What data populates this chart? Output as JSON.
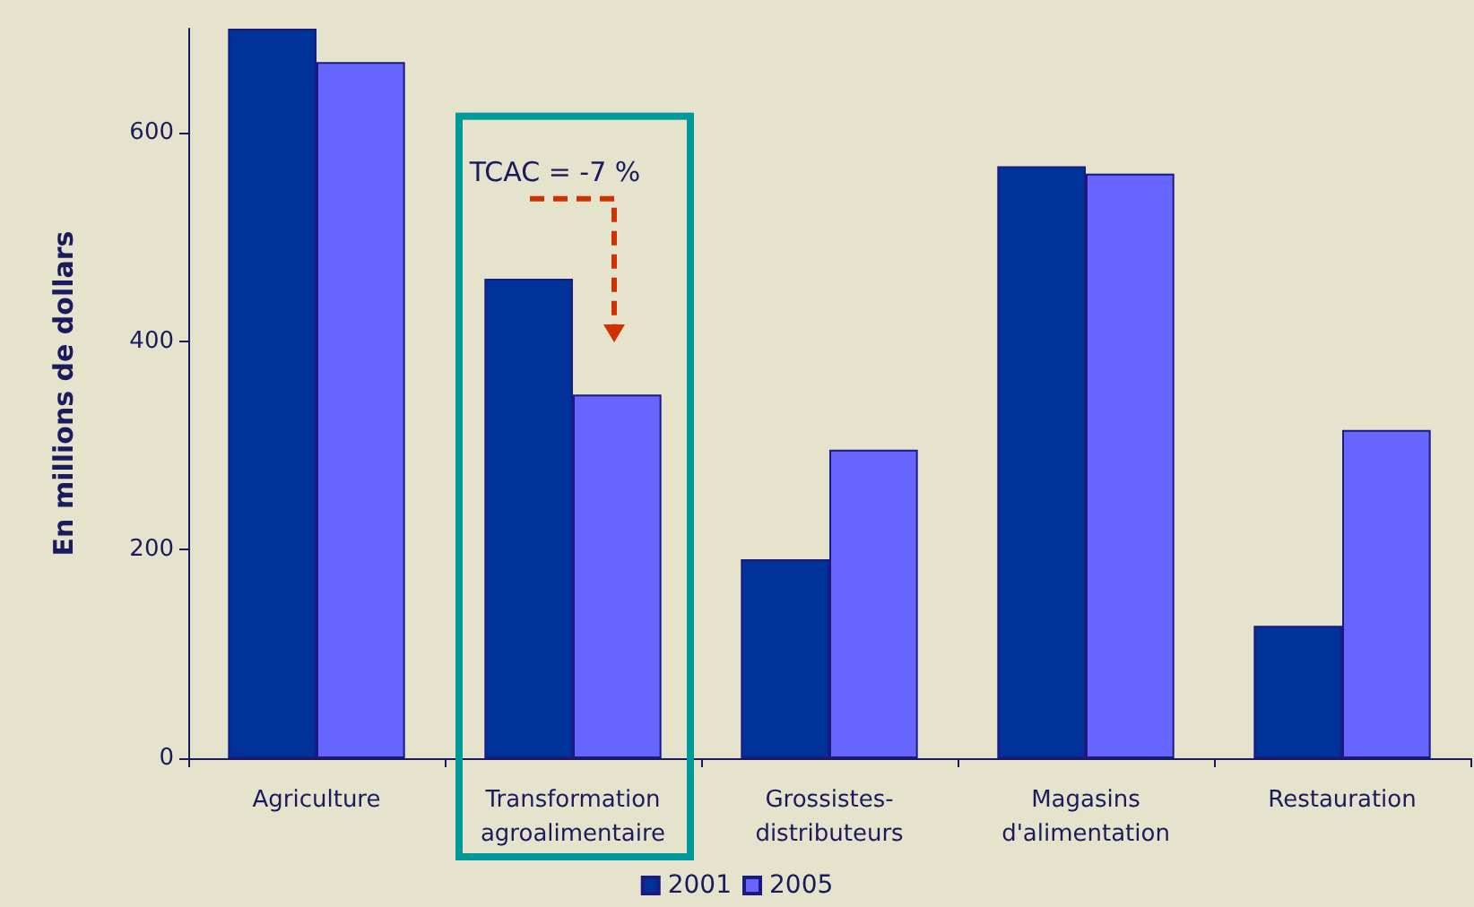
{
  "chart_data": {
    "type": "bar",
    "categories": [
      "Agriculture",
      "Transformation\nagroalimentaire",
      "Grossistes-\ndistributeurs",
      "Magasins\nd'alimentation",
      "Restauration"
    ],
    "series": [
      {
        "name": "2001",
        "color": "#003399",
        "values": [
          700,
          460,
          191,
          568,
          127
        ]
      },
      {
        "name": "2005",
        "color": "#6666ff",
        "values": [
          668,
          349,
          296,
          561,
          315
        ]
      }
    ],
    "ylabel": "En millions de dollars",
    "ylim": [
      0,
      700
    ],
    "yticks": [
      0,
      200,
      400,
      600
    ],
    "grid": false,
    "legend": "bottom",
    "annotations": [
      "TCAC = -7 %"
    ]
  }
}
